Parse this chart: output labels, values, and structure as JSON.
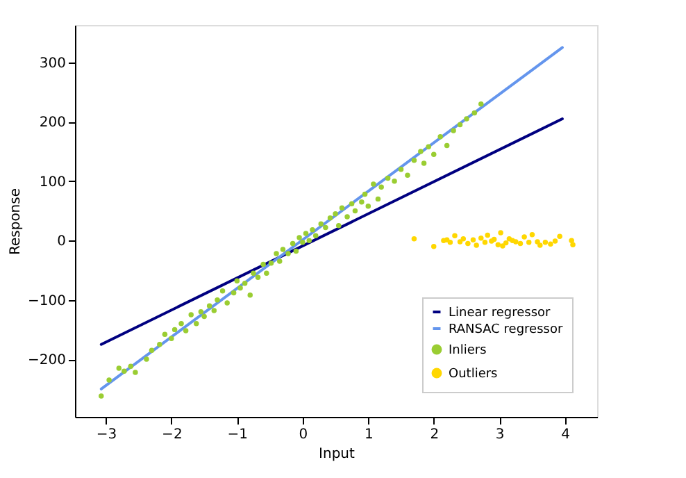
{
  "chart_data": {
    "type": "scatter",
    "xlabel": "Input",
    "ylabel": "Response",
    "xlim": [
      -3.47,
      4.49
    ],
    "ylim": [
      -297,
      363
    ],
    "xticks": [
      -3,
      -2,
      -1,
      0,
      1,
      2,
      3,
      4
    ],
    "yticks": [
      -200,
      -100,
      0,
      100,
      200,
      300
    ],
    "grid": false,
    "legend": "bottom right",
    "series": [
      {
        "name": "Linear regressor",
        "type": "line",
        "color": "#000080",
        "x": [
          -3.07,
          3.96
        ],
        "values": [
          -175,
          205
        ]
      },
      {
        "name": "RANSAC regressor",
        "type": "line",
        "color": "#6495ed",
        "x": [
          -3.07,
          3.96
        ],
        "values": [
          -250,
          325
        ]
      },
      {
        "name": "Inliers",
        "marker": "circle",
        "color": "#9acd32",
        "x": [
          -3.07,
          -2.95,
          -2.8,
          -2.72,
          -2.62,
          -2.55,
          -2.38,
          -2.3,
          -2.18,
          -2.1,
          -2.0,
          -1.95,
          -1.85,
          -1.78,
          -1.7,
          -1.62,
          -1.55,
          -1.5,
          -1.42,
          -1.35,
          -1.3,
          -1.22,
          -1.15,
          -1.05,
          -1.0,
          -0.95,
          -0.88,
          -0.8,
          -0.75,
          -0.68,
          -0.6,
          -0.55,
          -0.48,
          -0.4,
          -0.35,
          -0.3,
          -0.22,
          -0.15,
          -0.1,
          -0.05,
          0.0,
          0.05,
          0.1,
          0.15,
          0.2,
          0.28,
          0.35,
          0.42,
          0.5,
          0.55,
          0.6,
          0.68,
          0.75,
          0.8,
          0.9,
          0.95,
          1.0,
          1.08,
          1.15,
          1.2,
          1.3,
          1.4,
          1.5,
          1.6,
          1.7,
          1.8,
          1.85,
          1.92,
          2.0,
          2.1,
          2.2,
          2.3,
          2.4,
          2.5,
          2.62,
          2.72
        ],
        "values": [
          -262,
          -235,
          -215,
          -220,
          -212,
          -222,
          -200,
          -185,
          -175,
          -158,
          -165,
          -150,
          -140,
          -152,
          -125,
          -140,
          -120,
          -128,
          -110,
          -118,
          -100,
          -85,
          -105,
          -88,
          -68,
          -80,
          -72,
          -92,
          -55,
          -62,
          -40,
          -55,
          -38,
          -22,
          -35,
          -15,
          -22,
          -5,
          -18,
          5,
          -3,
          12,
          0,
          18,
          8,
          28,
          22,
          38,
          45,
          25,
          55,
          40,
          62,
          50,
          65,
          78,
          58,
          95,
          70,
          90,
          105,
          100,
          120,
          110,
          135,
          150,
          130,
          158,
          145,
          175,
          160,
          185,
          195,
          205,
          215,
          230
        ]
      },
      {
        "name": "Outliers",
        "marker": "circle",
        "color": "#ffd700",
        "x": [
          1.7,
          2.0,
          2.15,
          2.2,
          2.25,
          2.32,
          2.4,
          2.45,
          2.52,
          2.6,
          2.65,
          2.72,
          2.78,
          2.82,
          2.88,
          2.92,
          2.98,
          3.02,
          3.05,
          3.1,
          3.15,
          3.2,
          3.25,
          3.32,
          3.38,
          3.45,
          3.5,
          3.58,
          3.62,
          3.7,
          3.78,
          3.85,
          3.92,
          4.1,
          4.12
        ],
        "values": [
          3,
          -10,
          0,
          1,
          -3,
          8,
          -2,
          3,
          -5,
          1,
          -8,
          4,
          -3,
          9,
          -1,
          2,
          -7,
          13,
          -9,
          -4,
          3,
          0,
          -2,
          -5,
          6,
          -3,
          10,
          -2,
          -8,
          -3,
          -6,
          -1,
          7,
          0,
          -7
        ]
      }
    ]
  }
}
